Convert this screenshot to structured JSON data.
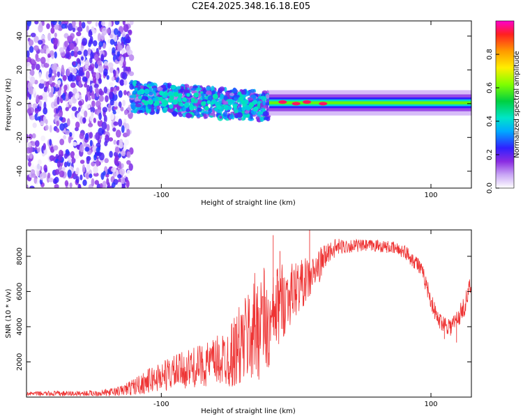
{
  "figure": {
    "title": "C2E4.2025.348.16.18.E05"
  },
  "chart_data": [
    {
      "type": "heatmap",
      "xlabel": "Height of straight line (km)",
      "ylabel": "Frequency (Hz)",
      "xlim": [
        -200,
        130
      ],
      "ylim": [
        -50,
        49
      ],
      "xticks": [
        -100,
        100
      ],
      "yticks": [
        -40,
        -20,
        0,
        20,
        40
      ],
      "colorbar": {
        "label": "Normalized spectral amplitude",
        "range": [
          0,
          1
        ],
        "ticks": [
          0.0,
          0.2,
          0.4,
          0.6,
          0.8
        ]
      },
      "regions": [
        {
          "desc": "noise",
          "x": [
            -200,
            -122
          ],
          "freq_spread": 50,
          "amplitude": 0.12
        },
        {
          "desc": "turbulent",
          "x": [
            -122,
            -20
          ],
          "freq_center": 2,
          "freq_spread": 8,
          "amplitude": 0.3
        },
        {
          "desc": "clean line",
          "x": [
            -20,
            130
          ],
          "freq_center": 0.5,
          "freq_spread": 2,
          "amplitude": 0.6
        }
      ],
      "peaks": [
        {
          "x": -10,
          "freq": 1,
          "amplitude": 0.95
        },
        {
          "x": 0,
          "freq": 0,
          "amplitude": 0.95
        },
        {
          "x": 8,
          "freq": 1,
          "amplitude": 0.95
        },
        {
          "x": 20,
          "freq": 0,
          "amplitude": 0.95
        }
      ]
    },
    {
      "type": "line",
      "xlabel": "Height of straight line (km)",
      "ylabel": "SNR (10 * v/v)",
      "xlim": [
        -200,
        130
      ],
      "ylim": [
        0,
        9500
      ],
      "xticks": [
        -100,
        100
      ],
      "yticks": [
        2000,
        4000,
        6000,
        8000
      ],
      "series": [
        {
          "name": "SNR",
          "color": "#ee3333",
          "x": [
            -200,
            -180,
            -160,
            -140,
            -130,
            -120,
            -110,
            -100,
            -90,
            -80,
            -70,
            -60,
            -50,
            -40,
            -30,
            -25,
            -20,
            -15,
            -10,
            -5,
            0,
            5,
            10,
            15,
            20,
            25,
            30,
            40,
            50,
            60,
            70,
            80,
            90,
            95,
            100,
            105,
            110,
            115,
            120,
            125,
            130
          ],
          "values": [
            200,
            200,
            200,
            250,
            350,
            600,
            900,
            1200,
            1400,
            1600,
            1800,
            2000,
            2300,
            3000,
            4000,
            4600,
            3500,
            5000,
            5500,
            5800,
            6200,
            6500,
            6700,
            7200,
            7800,
            8300,
            8500,
            8600,
            8600,
            8600,
            8500,
            8300,
            7600,
            6800,
            5500,
            4400,
            4200,
            4000,
            4500,
            5200,
            6500
          ],
          "noise": [
            100,
            150,
            150,
            200,
            300,
            500,
            700,
            900,
            1000,
            1100,
            1200,
            1400,
            1800,
            2500,
            3200,
            3500,
            2500,
            2500,
            2200,
            1800,
            1600,
            1400,
            1200,
            1000,
            900,
            600,
            500,
            400,
            350,
            350,
            350,
            400,
            500,
            500,
            500,
            500,
            500,
            600,
            600,
            600,
            600
          ]
        }
      ],
      "spikes": [
        {
          "x": -17,
          "value": 9200
        },
        {
          "x": -12,
          "value": 8300
        },
        {
          "x": 10,
          "value": 9500
        },
        {
          "x": 110,
          "value": 3300
        },
        {
          "x": 119,
          "value": 3100
        }
      ]
    }
  ]
}
